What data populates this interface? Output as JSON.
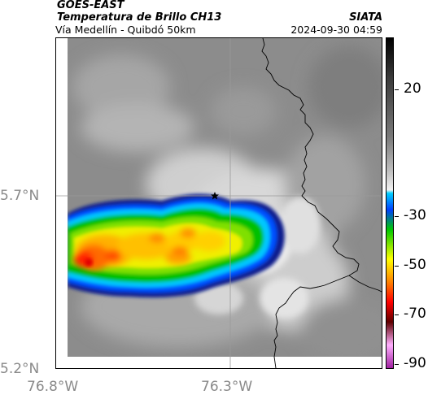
{
  "header": {
    "satellite": "GOES-EAST",
    "product": "Temperatura de Brillo CH13",
    "agency": "SIATA",
    "region": "Vía Medellín - Quibdó 50km",
    "timestamp": "2024-09-30 04:59"
  },
  "map": {
    "lat_ticks": [
      "5.7°N",
      "5.2°N"
    ],
    "lon_ticks": [
      "76.8°W",
      "76.3°W"
    ],
    "marker_icon": "star-icon",
    "colors": {
      "background_gray": "#8c8c8c",
      "boundary_line": "#000000",
      "grid_line": "#9a9a9a"
    }
  },
  "colorbar": {
    "labels": [
      "20",
      "-30",
      "-50",
      "-70",
      "-90"
    ],
    "units_note": "",
    "palette": [
      "#000000",
      "#3a3a3a",
      "#7a7a7a",
      "#bdbdbd",
      "#f2f2f2",
      "#00d0ff",
      "#0040ff",
      "#00c800",
      "#ffff00",
      "#ff8000",
      "#ff0000",
      "#600000",
      "#ffb0ff",
      "#a020a0"
    ]
  }
}
